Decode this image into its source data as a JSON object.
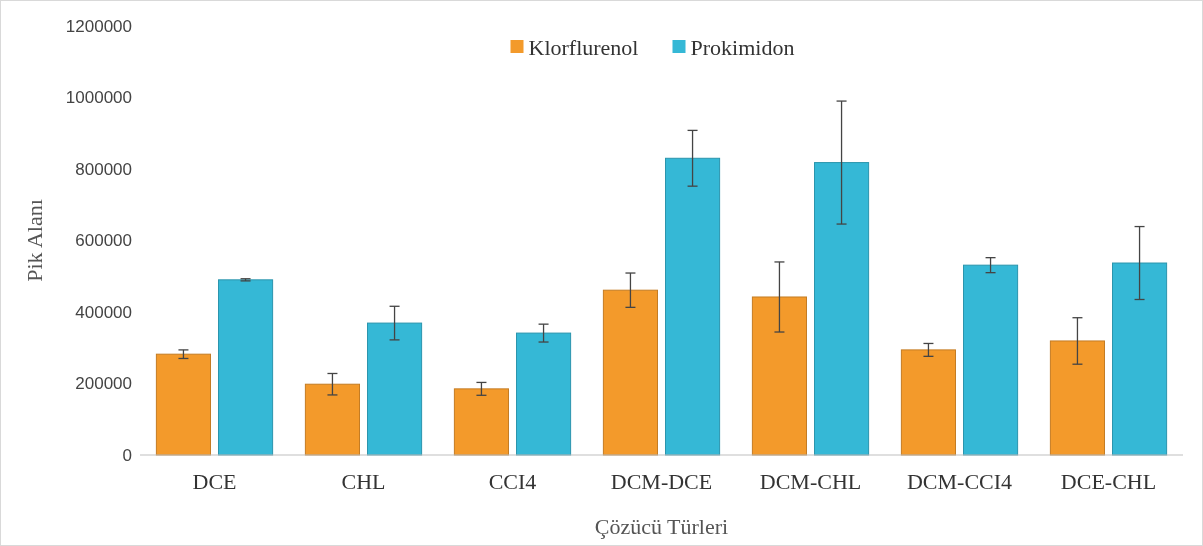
{
  "chart_data": {
    "type": "bar",
    "xlabel": "Çözücü Türleri",
    "ylabel": "Pik Alanı",
    "categories": [
      "DCE",
      "CHL",
      "CCI4",
      "DCM-DCE",
      "DCM-CHL",
      "DCM-CCI4",
      "DCE-CHL"
    ],
    "series": [
      {
        "name": "Klorflurenol",
        "color": "#f39a2b",
        "values": [
          282000,
          198000,
          185000,
          461000,
          442000,
          294000,
          319000
        ],
        "errors": [
          12000,
          30000,
          18000,
          48000,
          98000,
          18000,
          65000
        ]
      },
      {
        "name": "Prokimidon",
        "color": "#35b8d6",
        "values": [
          490000,
          369000,
          341000,
          830000,
          818000,
          531000,
          537000
        ],
        "errors": [
          3000,
          47000,
          25000,
          78000,
          172000,
          21000,
          102000
        ]
      }
    ],
    "ylim": [
      0,
      1200000
    ],
    "yticks": [
      0,
      200000,
      400000,
      600000,
      800000,
      1000000,
      1200000
    ],
    "grid": false,
    "legend": "top"
  }
}
